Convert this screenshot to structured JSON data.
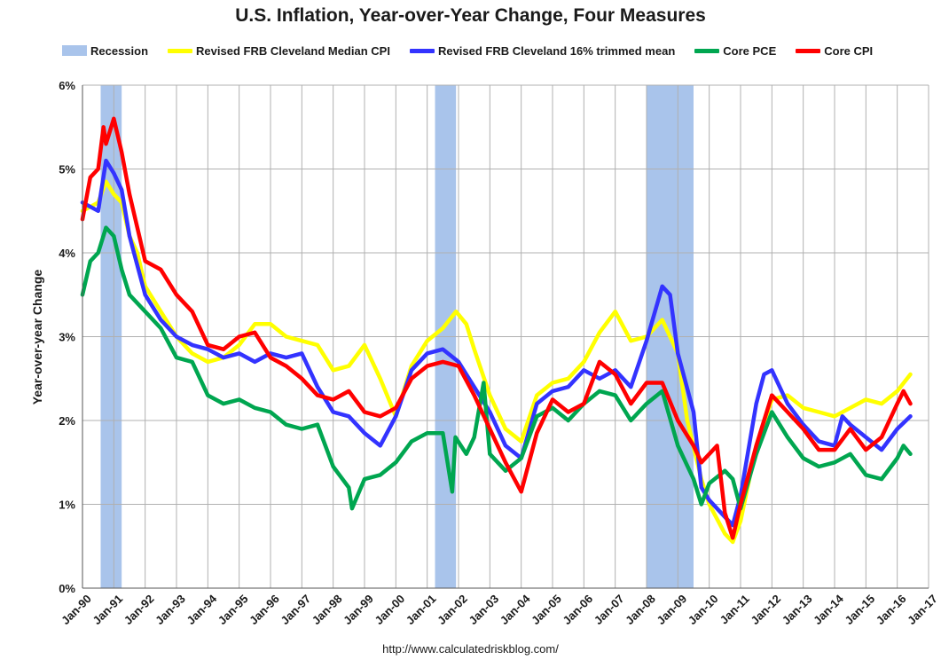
{
  "chart_data": {
    "type": "line",
    "title": "U.S. Inflation, Year-over-Year Change, Four Measures",
    "ylabel": "Year-over-year Change",
    "xlabel": "",
    "source": "http://www.calculatedriskblog.com/",
    "ylim": [
      0,
      6
    ],
    "yticks": [
      "0%",
      "1%",
      "2%",
      "3%",
      "4%",
      "5%",
      "6%"
    ],
    "xlim": [
      1990.0,
      2017.0
    ],
    "xticks": [
      "Jan-90",
      "Jan-91",
      "Jan-92",
      "Jan-93",
      "Jan-94",
      "Jan-95",
      "Jan-96",
      "Jan-97",
      "Jan-98",
      "Jan-99",
      "Jan-00",
      "Jan-01",
      "Jan-02",
      "Jan-03",
      "Jan-04",
      "Jan-05",
      "Jan-06",
      "Jan-07",
      "Jan-08",
      "Jan-09",
      "Jan-10",
      "Jan-11",
      "Jan-12",
      "Jan-13",
      "Jan-14",
      "Jan-15",
      "Jan-16",
      "Jan-17"
    ],
    "grid": true,
    "legend_position": "top",
    "recession": {
      "name": "Recession",
      "color": "#a9c4eb",
      "periods": [
        [
          1990.58,
          1991.25
        ],
        [
          2001.25,
          2001.92
        ],
        [
          2008.0,
          2009.5
        ]
      ]
    },
    "series": [
      {
        "name": "Revised FRB Cleveland Median CPI",
        "color": "#ffff00",
        "points": [
          [
            1990.0,
            4.5
          ],
          [
            1990.5,
            4.6
          ],
          [
            1990.75,
            4.85
          ],
          [
            1991.0,
            4.7
          ],
          [
            1991.25,
            4.6
          ],
          [
            1991.5,
            4.2
          ],
          [
            1991.75,
            4.0
          ],
          [
            1992.0,
            3.6
          ],
          [
            1992.5,
            3.3
          ],
          [
            1993.0,
            3.0
          ],
          [
            1993.5,
            2.8
          ],
          [
            1994.0,
            2.7
          ],
          [
            1994.5,
            2.75
          ],
          [
            1995.0,
            2.9
          ],
          [
            1995.5,
            3.15
          ],
          [
            1996.0,
            3.15
          ],
          [
            1996.5,
            3.0
          ],
          [
            1997.0,
            2.95
          ],
          [
            1997.5,
            2.9
          ],
          [
            1998.0,
            2.6
          ],
          [
            1998.5,
            2.65
          ],
          [
            1999.0,
            2.9
          ],
          [
            1999.5,
            2.5
          ],
          [
            2000.0,
            2.05
          ],
          [
            2000.5,
            2.65
          ],
          [
            2001.0,
            2.95
          ],
          [
            2001.5,
            3.1
          ],
          [
            2001.92,
            3.3
          ],
          [
            2002.25,
            3.15
          ],
          [
            2002.5,
            2.85
          ],
          [
            2003.0,
            2.3
          ],
          [
            2003.5,
            1.9
          ],
          [
            2004.0,
            1.75
          ],
          [
            2004.5,
            2.3
          ],
          [
            2005.0,
            2.45
          ],
          [
            2005.5,
            2.5
          ],
          [
            2006.0,
            2.7
          ],
          [
            2006.5,
            3.05
          ],
          [
            2007.0,
            3.3
          ],
          [
            2007.5,
            2.95
          ],
          [
            2008.0,
            3.0
          ],
          [
            2008.5,
            3.2
          ],
          [
            2009.0,
            2.8
          ],
          [
            2009.3,
            2.0
          ],
          [
            2009.75,
            1.3
          ],
          [
            2010.0,
            1.0
          ],
          [
            2010.5,
            0.65
          ],
          [
            2010.75,
            0.55
          ],
          [
            2011.0,
            0.8
          ],
          [
            2011.5,
            1.7
          ],
          [
            2012.0,
            2.25
          ],
          [
            2012.5,
            2.3
          ],
          [
            2013.0,
            2.15
          ],
          [
            2013.5,
            2.1
          ],
          [
            2014.0,
            2.05
          ],
          [
            2014.5,
            2.15
          ],
          [
            2015.0,
            2.25
          ],
          [
            2015.5,
            2.2
          ],
          [
            2016.0,
            2.35
          ],
          [
            2016.42,
            2.55
          ]
        ]
      },
      {
        "name": "Revised FRB Cleveland 16% trimmed mean",
        "color": "#3333ff",
        "points": [
          [
            1990.0,
            4.6
          ],
          [
            1990.5,
            4.5
          ],
          [
            1990.75,
            5.1
          ],
          [
            1991.0,
            4.95
          ],
          [
            1991.25,
            4.75
          ],
          [
            1991.5,
            4.2
          ],
          [
            1992.0,
            3.5
          ],
          [
            1992.5,
            3.2
          ],
          [
            1993.0,
            3.0
          ],
          [
            1993.5,
            2.9
          ],
          [
            1994.0,
            2.85
          ],
          [
            1994.5,
            2.75
          ],
          [
            1995.0,
            2.8
          ],
          [
            1995.5,
            2.7
          ],
          [
            1996.0,
            2.8
          ],
          [
            1996.5,
            2.75
          ],
          [
            1997.0,
            2.8
          ],
          [
            1997.5,
            2.4
          ],
          [
            1998.0,
            2.1
          ],
          [
            1998.5,
            2.05
          ],
          [
            1999.0,
            1.85
          ],
          [
            1999.5,
            1.7
          ],
          [
            2000.0,
            2.05
          ],
          [
            2000.5,
            2.6
          ],
          [
            2001.0,
            2.8
          ],
          [
            2001.5,
            2.85
          ],
          [
            2002.0,
            2.7
          ],
          [
            2002.5,
            2.4
          ],
          [
            2003.0,
            2.1
          ],
          [
            2003.5,
            1.7
          ],
          [
            2004.0,
            1.55
          ],
          [
            2004.5,
            2.2
          ],
          [
            2005.0,
            2.35
          ],
          [
            2005.5,
            2.4
          ],
          [
            2006.0,
            2.6
          ],
          [
            2006.5,
            2.5
          ],
          [
            2007.0,
            2.6
          ],
          [
            2007.5,
            2.4
          ],
          [
            2008.0,
            2.95
          ],
          [
            2008.5,
            3.6
          ],
          [
            2008.75,
            3.5
          ],
          [
            2009.0,
            2.8
          ],
          [
            2009.5,
            2.1
          ],
          [
            2009.75,
            1.2
          ],
          [
            2010.0,
            1.05
          ],
          [
            2010.5,
            0.85
          ],
          [
            2010.75,
            0.75
          ],
          [
            2011.0,
            1.1
          ],
          [
            2011.5,
            2.2
          ],
          [
            2011.75,
            2.55
          ],
          [
            2012.0,
            2.6
          ],
          [
            2012.5,
            2.2
          ],
          [
            2013.0,
            1.95
          ],
          [
            2013.5,
            1.75
          ],
          [
            2014.0,
            1.7
          ],
          [
            2014.25,
            2.05
          ],
          [
            2014.5,
            1.95
          ],
          [
            2015.0,
            1.8
          ],
          [
            2015.5,
            1.65
          ],
          [
            2016.0,
            1.9
          ],
          [
            2016.42,
            2.05
          ]
        ]
      },
      {
        "name": "Core PCE",
        "color": "#00a650",
        "points": [
          [
            1990.0,
            3.5
          ],
          [
            1990.25,
            3.9
          ],
          [
            1990.5,
            4.0
          ],
          [
            1990.75,
            4.3
          ],
          [
            1991.0,
            4.2
          ],
          [
            1991.25,
            3.8
          ],
          [
            1991.5,
            3.5
          ],
          [
            1992.0,
            3.3
          ],
          [
            1992.5,
            3.1
          ],
          [
            1993.0,
            2.75
          ],
          [
            1993.5,
            2.7
          ],
          [
            1994.0,
            2.3
          ],
          [
            1994.5,
            2.2
          ],
          [
            1995.0,
            2.25
          ],
          [
            1995.5,
            2.15
          ],
          [
            1996.0,
            2.1
          ],
          [
            1996.5,
            1.95
          ],
          [
            1997.0,
            1.9
          ],
          [
            1997.5,
            1.95
          ],
          [
            1998.0,
            1.45
          ],
          [
            1998.5,
            1.2
          ],
          [
            1998.6,
            0.95
          ],
          [
            1999.0,
            1.3
          ],
          [
            1999.5,
            1.35
          ],
          [
            2000.0,
            1.5
          ],
          [
            2000.5,
            1.75
          ],
          [
            2001.0,
            1.85
          ],
          [
            2001.5,
            1.85
          ],
          [
            2001.8,
            1.15
          ],
          [
            2001.9,
            1.8
          ],
          [
            2002.25,
            1.6
          ],
          [
            2002.5,
            1.8
          ],
          [
            2002.8,
            2.45
          ],
          [
            2003.0,
            1.6
          ],
          [
            2003.5,
            1.4
          ],
          [
            2004.0,
            1.55
          ],
          [
            2004.5,
            2.05
          ],
          [
            2005.0,
            2.15
          ],
          [
            2005.5,
            2.0
          ],
          [
            2006.0,
            2.2
          ],
          [
            2006.5,
            2.35
          ],
          [
            2007.0,
            2.3
          ],
          [
            2007.5,
            2.0
          ],
          [
            2008.0,
            2.2
          ],
          [
            2008.5,
            2.35
          ],
          [
            2009.0,
            1.7
          ],
          [
            2009.5,
            1.3
          ],
          [
            2009.75,
            1.0
          ],
          [
            2010.0,
            1.25
          ],
          [
            2010.5,
            1.4
          ],
          [
            2010.75,
            1.3
          ],
          [
            2011.0,
            0.95
          ],
          [
            2011.5,
            1.6
          ],
          [
            2012.0,
            2.1
          ],
          [
            2012.5,
            1.8
          ],
          [
            2013.0,
            1.55
          ],
          [
            2013.5,
            1.45
          ],
          [
            2014.0,
            1.5
          ],
          [
            2014.5,
            1.6
          ],
          [
            2015.0,
            1.35
          ],
          [
            2015.5,
            1.3
          ],
          [
            2016.0,
            1.55
          ],
          [
            2016.2,
            1.7
          ],
          [
            2016.42,
            1.6
          ]
        ]
      },
      {
        "name": "Core CPI",
        "color": "#ff0000",
        "points": [
          [
            1990.0,
            4.4
          ],
          [
            1990.25,
            4.9
          ],
          [
            1990.5,
            5.0
          ],
          [
            1990.67,
            5.5
          ],
          [
            1990.75,
            5.3
          ],
          [
            1991.0,
            5.6
          ],
          [
            1991.25,
            5.2
          ],
          [
            1991.5,
            4.7
          ],
          [
            1992.0,
            3.9
          ],
          [
            1992.5,
            3.8
          ],
          [
            1993.0,
            3.5
          ],
          [
            1993.5,
            3.3
          ],
          [
            1994.0,
            2.9
          ],
          [
            1994.5,
            2.85
          ],
          [
            1995.0,
            3.0
          ],
          [
            1995.5,
            3.05
          ],
          [
            1996.0,
            2.75
          ],
          [
            1996.5,
            2.65
          ],
          [
            1997.0,
            2.5
          ],
          [
            1997.5,
            2.3
          ],
          [
            1998.0,
            2.25
          ],
          [
            1998.5,
            2.35
          ],
          [
            1999.0,
            2.1
          ],
          [
            1999.5,
            2.05
          ],
          [
            2000.0,
            2.15
          ],
          [
            2000.5,
            2.5
          ],
          [
            2001.0,
            2.65
          ],
          [
            2001.5,
            2.7
          ],
          [
            2002.0,
            2.65
          ],
          [
            2002.5,
            2.3
          ],
          [
            2003.0,
            1.9
          ],
          [
            2003.5,
            1.5
          ],
          [
            2004.0,
            1.15
          ],
          [
            2004.5,
            1.85
          ],
          [
            2005.0,
            2.25
          ],
          [
            2005.5,
            2.1
          ],
          [
            2006.0,
            2.2
          ],
          [
            2006.5,
            2.7
          ],
          [
            2007.0,
            2.55
          ],
          [
            2007.5,
            2.2
          ],
          [
            2008.0,
            2.45
          ],
          [
            2008.5,
            2.45
          ],
          [
            2009.0,
            2.0
          ],
          [
            2009.5,
            1.7
          ],
          [
            2009.75,
            1.5
          ],
          [
            2010.0,
            1.6
          ],
          [
            2010.25,
            1.7
          ],
          [
            2010.5,
            0.9
          ],
          [
            2010.75,
            0.6
          ],
          [
            2011.0,
            1.0
          ],
          [
            2011.5,
            1.7
          ],
          [
            2012.0,
            2.3
          ],
          [
            2012.5,
            2.1
          ],
          [
            2013.0,
            1.9
          ],
          [
            2013.5,
            1.65
          ],
          [
            2014.0,
            1.65
          ],
          [
            2014.5,
            1.9
          ],
          [
            2015.0,
            1.65
          ],
          [
            2015.5,
            1.8
          ],
          [
            2016.0,
            2.2
          ],
          [
            2016.2,
            2.35
          ],
          [
            2016.42,
            2.2
          ]
        ]
      }
    ]
  }
}
